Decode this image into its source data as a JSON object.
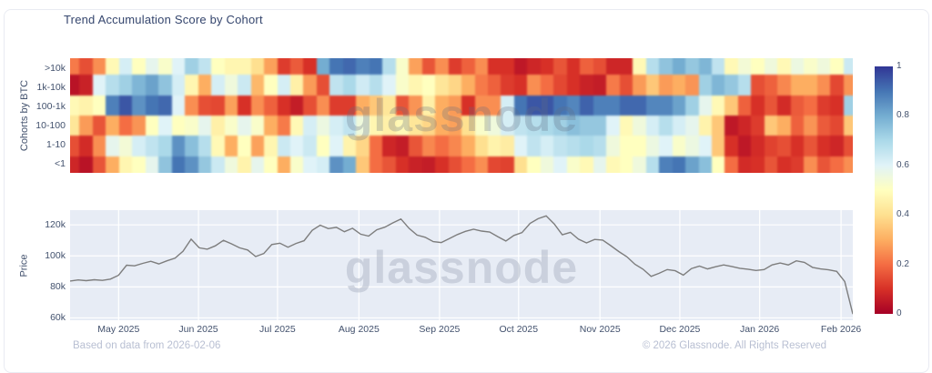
{
  "card": {
    "title": "Trend Accumulation Score by Cohort",
    "footer_left": "Based on data from 2026-02-06",
    "footer_right": "© 2026 Glassnode. All Rights Reserved",
    "watermark": "glassnode"
  },
  "colors": {
    "title_text": "#35466e",
    "tick_text": "#42516d",
    "footer_text": "#b8bfd2",
    "plot_bg": "#e7ecf5",
    "grid": "#ffffff",
    "price_line": "#7d7d7d",
    "card_border": "#e9ebf2",
    "colormap": [
      {
        "v": 0.0,
        "c": "#a50026"
      },
      {
        "v": 0.1,
        "c": "#d73027"
      },
      {
        "v": 0.2,
        "c": "#f46d43"
      },
      {
        "v": 0.3,
        "c": "#fdae61"
      },
      {
        "v": 0.4,
        "c": "#fee090"
      },
      {
        "v": 0.5,
        "c": "#ffffbf"
      },
      {
        "v": 0.6,
        "c": "#e0f3f8"
      },
      {
        "v": 0.7,
        "c": "#abd9e9"
      },
      {
        "v": 0.8,
        "c": "#74add1"
      },
      {
        "v": 0.9,
        "c": "#4575b4"
      },
      {
        "v": 1.0,
        "c": "#313695"
      }
    ]
  },
  "chart_data": [
    {
      "type": "heatmap",
      "y_axis_title": "Cohorts by BTC",
      "colorscale": "RdYlBu (0=red accumulation low, 1=blue accumulation high)",
      "x_range": [
        "Apr 2025",
        "Feb 2026"
      ],
      "rows": [
        ">10k",
        "1k-10k",
        "100-1k",
        "10-100",
        "1-10",
        "<1"
      ],
      "colorbar_ticks": [
        {
          "label": "1",
          "v": 1
        },
        {
          "label": "0.8",
          "v": 0.8
        },
        {
          "label": "0.6",
          "v": 0.6
        },
        {
          "label": "0.4",
          "v": 0.4
        },
        {
          "label": "0.2",
          "v": 0.2
        },
        {
          "label": "0",
          "v": 0
        }
      ],
      "values": [
        [
          0.22,
          0.15,
          0.25,
          0.48,
          0.62,
          0.5,
          0.58,
          0.52,
          0.6,
          0.72,
          0.66,
          0.5,
          0.47,
          0.47,
          0.4,
          0.28,
          0.12,
          0.17,
          0.1,
          0.8,
          0.9,
          0.92,
          0.88,
          0.9,
          0.68,
          0.52,
          0.28,
          0.16,
          0.25,
          0.12,
          0.18,
          0.25,
          0.1,
          0.1,
          0.05,
          0.08,
          0.1,
          0.16,
          0.1,
          0.18,
          0.15,
          0.08,
          0.08,
          0.48,
          0.68,
          0.75,
          0.8,
          0.74,
          0.78,
          0.66,
          0.48,
          0.54,
          0.5,
          0.55,
          0.48,
          0.56,
          0.52,
          0.55,
          0.5,
          0.64
        ],
        [
          0.04,
          0.07,
          0.6,
          0.68,
          0.72,
          0.78,
          0.82,
          0.75,
          0.62,
          0.47,
          0.3,
          0.62,
          0.55,
          0.64,
          0.32,
          0.5,
          0.62,
          0.45,
          0.27,
          0.15,
          0.66,
          0.7,
          0.63,
          0.68,
          0.6,
          0.52,
          0.47,
          0.5,
          0.42,
          0.38,
          0.3,
          0.22,
          0.18,
          0.12,
          0.1,
          0.25,
          0.2,
          0.14,
          0.1,
          0.07,
          0.06,
          0.22,
          0.15,
          0.27,
          0.35,
          0.27,
          0.3,
          0.26,
          0.72,
          0.78,
          0.74,
          0.68,
          0.15,
          0.18,
          0.24,
          0.3,
          0.3,
          0.25,
          0.14,
          0.26
        ],
        [
          0.48,
          0.46,
          0.5,
          0.88,
          0.95,
          0.85,
          0.9,
          0.92,
          0.6,
          0.25,
          0.15,
          0.14,
          0.28,
          0.1,
          0.25,
          0.18,
          0.1,
          0.06,
          0.15,
          0.25,
          0.12,
          0.12,
          0.3,
          0.35,
          0.42,
          0.16,
          0.26,
          0.45,
          0.3,
          0.27,
          0.1,
          0.25,
          0.25,
          0.62,
          0.9,
          0.95,
          0.95,
          0.9,
          0.87,
          0.93,
          0.88,
          0.88,
          0.92,
          0.92,
          0.87,
          0.87,
          0.82,
          0.72,
          0.58,
          0.48,
          0.35,
          0.18,
          0.1,
          0.16,
          0.09,
          0.17,
          0.2,
          0.12,
          0.1,
          0.72
        ],
        [
          0.42,
          0.27,
          0.16,
          0.3,
          0.2,
          0.26,
          0.5,
          0.6,
          0.5,
          0.52,
          0.58,
          0.45,
          0.52,
          0.58,
          0.52,
          0.3,
          0.22,
          0.48,
          0.62,
          0.56,
          0.62,
          0.66,
          0.55,
          0.47,
          0.45,
          0.48,
          0.42,
          0.38,
          0.3,
          0.28,
          0.4,
          0.52,
          0.55,
          0.62,
          0.66,
          0.68,
          0.7,
          0.72,
          0.76,
          0.74,
          0.74,
          0.6,
          0.48,
          0.55,
          0.62,
          0.68,
          0.62,
          0.58,
          0.46,
          0.35,
          0.05,
          0.08,
          0.12,
          0.35,
          0.3,
          0.18,
          0.26,
          0.17,
          0.14,
          0.35
        ],
        [
          0.15,
          0.09,
          0.25,
          0.58,
          0.54,
          0.62,
          0.66,
          0.7,
          0.85,
          0.76,
          0.68,
          0.48,
          0.3,
          0.5,
          0.28,
          0.47,
          0.64,
          0.6,
          0.64,
          0.5,
          0.6,
          0.46,
          0.38,
          0.2,
          0.08,
          0.06,
          0.16,
          0.24,
          0.2,
          0.24,
          0.3,
          0.4,
          0.46,
          0.44,
          0.6,
          0.66,
          0.62,
          0.66,
          0.68,
          0.7,
          0.68,
          0.55,
          0.5,
          0.5,
          0.56,
          0.6,
          0.52,
          0.56,
          0.6,
          0.35,
          0.1,
          0.05,
          0.09,
          0.13,
          0.15,
          0.1,
          0.16,
          0.1,
          0.08,
          0.15
        ],
        [
          0.08,
          0.04,
          0.16,
          0.3,
          0.47,
          0.5,
          0.58,
          0.75,
          0.9,
          0.85,
          0.74,
          0.64,
          0.55,
          0.46,
          0.58,
          0.5,
          0.3,
          0.52,
          0.6,
          0.62,
          0.85,
          0.8,
          0.35,
          0.2,
          0.16,
          0.1,
          0.07,
          0.06,
          0.1,
          0.15,
          0.2,
          0.25,
          0.14,
          0.13,
          0.4,
          0.5,
          0.55,
          0.6,
          0.52,
          0.48,
          0.58,
          0.48,
          0.5,
          0.55,
          0.68,
          0.88,
          0.9,
          0.82,
          0.76,
          0.5,
          0.2,
          0.09,
          0.1,
          0.16,
          0.1,
          0.12,
          0.25,
          0.16,
          0.2,
          0.25
        ]
      ]
    },
    {
      "type": "line",
      "y_axis_title": "Price",
      "series_name": "BTC price (USD)",
      "y_domain_k": [
        58.5,
        129.5
      ],
      "y_ticks": [
        {
          "label": "120k",
          "v": 120
        },
        {
          "label": "100k",
          "v": 100
        },
        {
          "label": "80k",
          "v": 80
        },
        {
          "label": "60k",
          "v": 60
        }
      ],
      "x_ticks": [
        {
          "label": "May 2025",
          "f": 0.062
        },
        {
          "label": "Jun 2025",
          "f": 0.164
        },
        {
          "label": "Jul 2025",
          "f": 0.265
        },
        {
          "label": "Aug 2025",
          "f": 0.369
        },
        {
          "label": "Sep 2025",
          "f": 0.472
        },
        {
          "label": "Oct 2025",
          "f": 0.573
        },
        {
          "label": "Nov 2025",
          "f": 0.677
        },
        {
          "label": "Dec 2025",
          "f": 0.779
        },
        {
          "label": "Jan 2026",
          "f": 0.881
        },
        {
          "label": "Feb 2026",
          "f": 0.985
        }
      ],
      "prices_k": [
        83.8,
        84.5,
        84.0,
        84.6,
        84.2,
        85.0,
        87.5,
        94.0,
        93.6,
        95.2,
        96.5,
        94.8,
        96.8,
        98.5,
        103.0,
        110.8,
        105.2,
        104.3,
        106.5,
        110.0,
        107.8,
        105.2,
        103.8,
        99.6,
        101.5,
        107.3,
        108.2,
        105.6,
        108.0,
        109.8,
        116.5,
        119.8,
        117.6,
        118.4,
        115.6,
        117.8,
        114.0,
        112.8,
        116.8,
        118.5,
        121.3,
        123.8,
        117.8,
        113.4,
        112.0,
        109.2,
        108.6,
        111.2,
        113.8,
        115.8,
        117.2,
        116.0,
        115.4,
        112.4,
        109.6,
        113.2,
        115.0,
        121.0,
        124.0,
        125.8,
        120.6,
        113.6,
        115.2,
        110.8,
        108.4,
        110.6,
        110.2,
        106.6,
        102.8,
        99.4,
        94.6,
        91.4,
        86.8,
        88.8,
        91.2,
        90.4,
        87.6,
        91.8,
        93.4,
        91.6,
        93.0,
        94.2,
        93.2,
        92.0,
        91.4,
        90.6,
        91.2,
        94.2,
        95.4,
        94.2,
        96.8,
        95.8,
        92.6,
        91.6,
        91.0,
        90.0,
        83.5,
        62.5
      ]
    }
  ]
}
